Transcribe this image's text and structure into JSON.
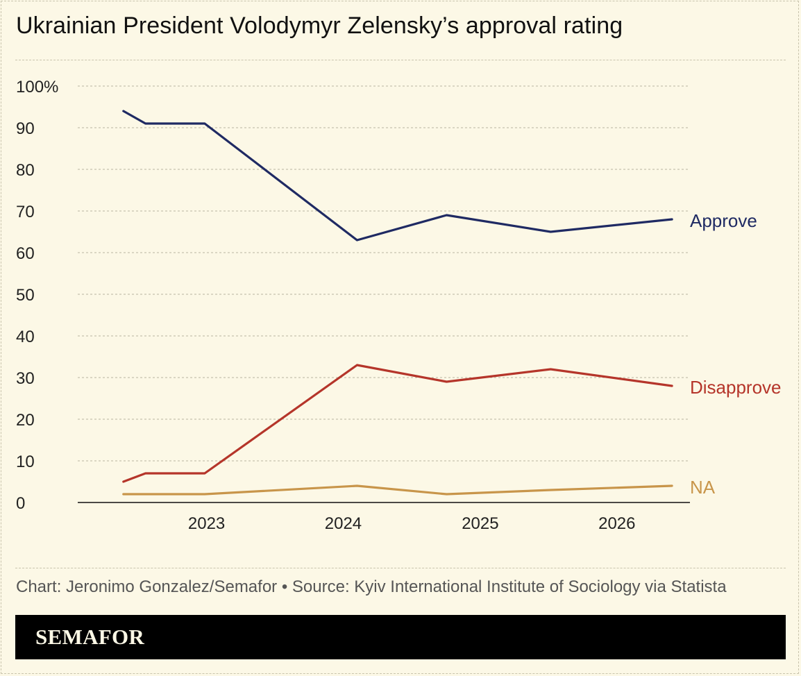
{
  "title": "Ukrainian President Volodymyr Zelensky’s approval rating",
  "credit": "Chart: Jeronimo Gonzalez/Semafor • Source: Kyiv International Institute of Sociology via Statista",
  "brand": "SEMAFOR",
  "colors": {
    "background": "#fcf8e6",
    "approve": "#1f2a63",
    "disapprove": "#b5352a",
    "na": "#c8954a",
    "grid": "#b9b4a0"
  },
  "chart_data": {
    "type": "line",
    "title": "Ukrainian President Volodymyr Zelensky’s approval rating",
    "xlabel": "",
    "ylabel": "",
    "xlim": [
      "2022-01-22",
      "2026-07-15"
    ],
    "ylim": [
      0,
      100
    ],
    "x_ticks": [
      "2023",
      "2024",
      "2025",
      "2026"
    ],
    "y_ticks": [
      "100%",
      "90",
      "80",
      "70",
      "60",
      "50",
      "40",
      "30",
      "20",
      "10",
      "0"
    ],
    "grid": "horizontal dashed",
    "legend": "direct labels at line ends",
    "x": [
      "2022-05-24",
      "2022-07-22",
      "2022-12-27",
      "2024-02-07",
      "2024-10-03",
      "2025-07-08",
      "2026-05-28"
    ],
    "series": [
      {
        "name": "Approve",
        "values": [
          94,
          91,
          91,
          63,
          69,
          65,
          68
        ]
      },
      {
        "name": "Disapprove",
        "values": [
          5,
          7,
          7,
          33,
          29,
          32,
          28
        ]
      },
      {
        "name": "NA",
        "values": [
          2,
          2,
          2,
          4,
          2,
          3,
          4
        ]
      }
    ]
  }
}
